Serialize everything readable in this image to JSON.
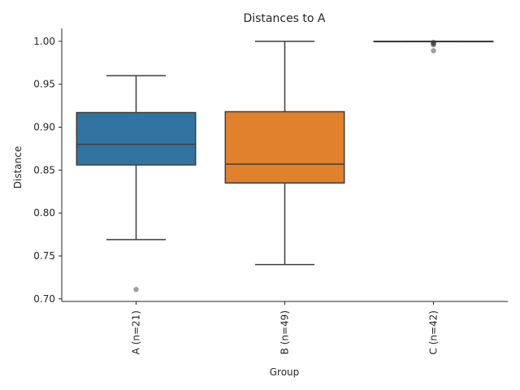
{
  "chart_data": {
    "type": "box",
    "title": "Distances to A",
    "xlabel": "Group",
    "ylabel": "Distance",
    "ylim": [
      0.697,
      1.015
    ],
    "yticks": [
      "0.70",
      "0.75",
      "0.80",
      "0.85",
      "0.90",
      "0.95",
      "1.00"
    ],
    "grid": false,
    "categories": [
      "A (n=21)",
      "B (n=49)",
      "C (n=42)"
    ],
    "boxes": [
      {
        "category": "A (n=21)",
        "color": "#3274a1",
        "whisker_low": 0.769,
        "q1": 0.856,
        "median": 0.88,
        "q3": 0.917,
        "whisker_high": 0.96,
        "outliers": [
          0.711
        ]
      },
      {
        "category": "B (n=49)",
        "color": "#e1812c",
        "whisker_low": 0.74,
        "q1": 0.835,
        "median": 0.857,
        "q3": 0.918,
        "whisker_high": 1.0,
        "outliers": []
      },
      {
        "category": "C (n=42)",
        "color": "#c03d3e",
        "whisker_low": 1.0,
        "q1": 1.0,
        "median": 1.0,
        "q3": 1.0,
        "whisker_high": 1.0,
        "outliers": [
          0.999,
          0.998,
          0.997,
          0.996,
          0.989
        ]
      }
    ]
  }
}
